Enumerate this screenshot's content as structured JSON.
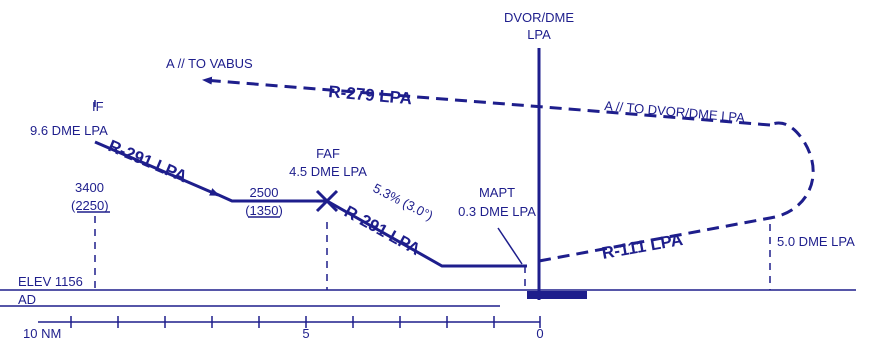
{
  "colors": {
    "ink": "#1e1e8c",
    "background": "#ffffff"
  },
  "labels": {
    "navaid_name": "DVOR/DME",
    "navaid_sub": "LPA",
    "missed_to_vabus": "A // TO VABUS",
    "missed_to_dvor": "A // TO DVOR/DME LPA",
    "radial_279": "R-279 LPA",
    "radial_291_initial": "R-291 LPA",
    "radial_291_final": "R-291 LPA",
    "radial_111": "R-111 LPA",
    "if_label": "IF",
    "if_distance": "9.6 DME LPA",
    "if_altitude": "3400",
    "if_altitude_agl": "(2250)",
    "faf_label": "FAF",
    "faf_distance": "4.5 DME LPA",
    "faf_altitude": "2500",
    "faf_altitude_agl": "(1350)",
    "gradient": "5.3% (3.0°)",
    "mapt_label": "MAPT",
    "mapt_distance": "0.3 DME LPA",
    "turn_distance": "5.0 DME LPA",
    "elevation": "ELEV 1156",
    "aerodrome": "AD"
  },
  "scale": {
    "unit_label": "10 NM",
    "tick_labels": [
      "5",
      "0"
    ]
  }
}
